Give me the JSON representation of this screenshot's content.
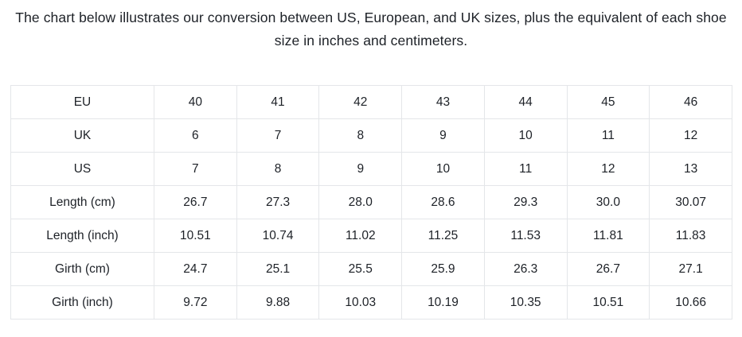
{
  "intro": {
    "text": "The chart below illustrates our conversion between US, European, and UK sizes, plus the equivalent of each shoe size in inches and centimeters."
  },
  "table": {
    "rows": [
      {
        "label": "EU",
        "values": [
          "40",
          "41",
          "42",
          "43",
          "44",
          "45",
          "46"
        ]
      },
      {
        "label": "UK",
        "values": [
          "6",
          "7",
          "8",
          "9",
          "10",
          "11",
          "12"
        ]
      },
      {
        "label": "US",
        "values": [
          "7",
          "8",
          "9",
          "10",
          "11",
          "12",
          "13"
        ]
      },
      {
        "label": "Length (cm)",
        "values": [
          "26.7",
          "27.3",
          "28.0",
          "28.6",
          "29.3",
          "30.0",
          "30.07"
        ]
      },
      {
        "label": "Length (inch)",
        "values": [
          "10.51",
          "10.74",
          "11.02",
          "11.25",
          "11.53",
          "11.81",
          "11.83"
        ]
      },
      {
        "label": "Girth (cm)",
        "values": [
          "24.7",
          "25.1",
          "25.5",
          "25.9",
          "26.3",
          "26.7",
          "27.1"
        ]
      },
      {
        "label": "Girth (inch)",
        "values": [
          "9.72",
          "9.88",
          "10.03",
          "10.19",
          "10.35",
          "10.51",
          "10.66"
        ]
      }
    ]
  }
}
